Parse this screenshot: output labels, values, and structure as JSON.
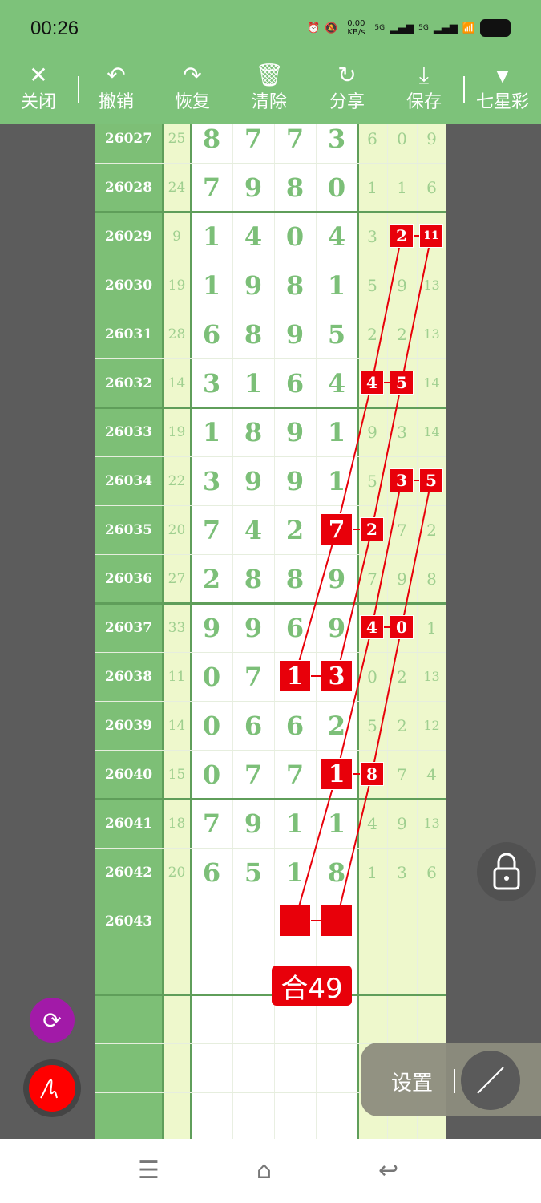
{
  "status": {
    "time": "00:26",
    "net_speed": "0.00 KB/s",
    "signal1": "5G",
    "signal2": "5G"
  },
  "toolbar": [
    {
      "icon": "close-icon",
      "glyph": "✕",
      "label": "关闭"
    },
    {
      "icon": "undo-icon",
      "glyph": "↶",
      "label": "撤销"
    },
    {
      "icon": "redo-icon",
      "glyph": "↷",
      "label": "恢复"
    },
    {
      "icon": "trash-icon",
      "glyph": "🗑",
      "label": "清除"
    },
    {
      "icon": "share-icon",
      "glyph": "↻",
      "label": "分享"
    },
    {
      "icon": "download-icon",
      "glyph": "⤓",
      "label": "保存"
    },
    {
      "icon": "triangle-down-icon",
      "glyph": "▼",
      "label": "七星彩"
    }
  ],
  "rows": [
    {
      "issue": "26027",
      "sum": "25",
      "main": [
        "8",
        "7",
        "7",
        "3"
      ],
      "right": [
        "6",
        "0",
        "9"
      ]
    },
    {
      "issue": "26028",
      "sum": "24",
      "main": [
        "7",
        "9",
        "8",
        "0"
      ],
      "right": [
        "1",
        "1",
        "6"
      ]
    },
    {
      "issue": "26029",
      "sum": "9",
      "main": [
        "1",
        "4",
        "0",
        "4"
      ],
      "right": [
        "3",
        "2",
        "11"
      ]
    },
    {
      "issue": "26030",
      "sum": "19",
      "main": [
        "1",
        "9",
        "8",
        "1"
      ],
      "right": [
        "5",
        "9",
        "13"
      ]
    },
    {
      "issue": "26031",
      "sum": "28",
      "main": [
        "6",
        "8",
        "9",
        "5"
      ],
      "right": [
        "2",
        "2",
        "13"
      ]
    },
    {
      "issue": "26032",
      "sum": "14",
      "main": [
        "3",
        "1",
        "6",
        "4"
      ],
      "right": [
        "4",
        "5",
        "14"
      ]
    },
    {
      "issue": "26033",
      "sum": "19",
      "main": [
        "1",
        "8",
        "9",
        "1"
      ],
      "right": [
        "9",
        "3",
        "14"
      ]
    },
    {
      "issue": "26034",
      "sum": "22",
      "main": [
        "3",
        "9",
        "9",
        "1"
      ],
      "right": [
        "5",
        "3",
        "5"
      ]
    },
    {
      "issue": "26035",
      "sum": "20",
      "main": [
        "7",
        "4",
        "2",
        "7"
      ],
      "right": [
        "2",
        "7",
        "2"
      ]
    },
    {
      "issue": "26036",
      "sum": "27",
      "main": [
        "2",
        "8",
        "8",
        "9"
      ],
      "right": [
        "7",
        "9",
        "8"
      ]
    },
    {
      "issue": "26037",
      "sum": "33",
      "main": [
        "9",
        "9",
        "6",
        "9"
      ],
      "right": [
        "4",
        "0",
        "1"
      ]
    },
    {
      "issue": "26038",
      "sum": "11",
      "main": [
        "0",
        "7",
        "1",
        "3"
      ],
      "right": [
        "0",
        "2",
        "13"
      ]
    },
    {
      "issue": "26039",
      "sum": "14",
      "main": [
        "0",
        "6",
        "6",
        "2"
      ],
      "right": [
        "5",
        "2",
        "12"
      ]
    },
    {
      "issue": "26040",
      "sum": "15",
      "main": [
        "0",
        "7",
        "7",
        "1"
      ],
      "right": [
        "8",
        "7",
        "4"
      ]
    },
    {
      "issue": "26041",
      "sum": "18",
      "main": [
        "7",
        "9",
        "1",
        "1"
      ],
      "right": [
        "4",
        "9",
        "13"
      ]
    },
    {
      "issue": "26042",
      "sum": "20",
      "main": [
        "6",
        "5",
        "1",
        "8"
      ],
      "right": [
        "1",
        "3",
        "6"
      ]
    },
    {
      "issue": "26043",
      "sum": "",
      "main": [
        "",
        "",
        "",
        ""
      ],
      "right": [
        "",
        "",
        ""
      ]
    },
    {
      "issue": "",
      "sum": "",
      "main": [
        "",
        "",
        "",
        ""
      ],
      "right": [
        "",
        "",
        ""
      ]
    },
    {
      "issue": "",
      "sum": "",
      "main": [
        "",
        "",
        "",
        ""
      ],
      "right": [
        "",
        "",
        ""
      ]
    },
    {
      "issue": "",
      "sum": "",
      "main": [
        "",
        "",
        "",
        ""
      ],
      "right": [
        "",
        "",
        ""
      ]
    },
    {
      "issue": "",
      "sum": "",
      "main": [
        "",
        "",
        "",
        ""
      ],
      "right": [
        "",
        "",
        ""
      ]
    }
  ],
  "highlights": [
    {
      "issue": "26029",
      "cols": [
        5,
        6
      ],
      "texts": [
        "2",
        "11"
      ]
    },
    {
      "issue": "26032",
      "cols": [
        4,
        5
      ],
      "texts": [
        "4",
        "5"
      ]
    },
    {
      "issue": "26034",
      "cols": [
        5,
        6
      ],
      "texts": [
        "3",
        "5"
      ]
    },
    {
      "issue": "26035",
      "cols": [
        3,
        4
      ],
      "texts": [
        "7",
        "2"
      ]
    },
    {
      "issue": "26037",
      "cols": [
        4,
        5
      ],
      "texts": [
        "4",
        "0"
      ]
    },
    {
      "issue": "26038",
      "cols": [
        2,
        3
      ],
      "texts": [
        "1",
        "3"
      ]
    },
    {
      "issue": "26040",
      "cols": [
        3,
        4
      ],
      "texts": [
        "1",
        "8"
      ]
    },
    {
      "issue": "26043",
      "cols": [
        2,
        3
      ],
      "texts": [
        "",
        ""
      ]
    }
  ],
  "chains": [
    [
      [
        "26029",
        5
      ],
      [
        "26032",
        4
      ],
      [
        "26035",
        3
      ],
      [
        "26038",
        2
      ]
    ],
    [
      [
        "26029",
        6
      ],
      [
        "26032",
        5
      ],
      [
        "26035",
        4
      ],
      [
        "26038",
        3
      ]
    ],
    [
      [
        "26034",
        5
      ],
      [
        "26037",
        4
      ],
      [
        "26040",
        3
      ],
      [
        "26043",
        2
      ]
    ],
    [
      [
        "26034",
        6
      ],
      [
        "26037",
        5
      ],
      [
        "26040",
        4
      ],
      [
        "26043",
        3
      ]
    ]
  ],
  "badge": "合49",
  "settings_label": "设置",
  "colors": {
    "green": "#7dbf76",
    "light": "#eef8cc",
    "red": "#e8000a",
    "digit": "#7cbf78"
  }
}
